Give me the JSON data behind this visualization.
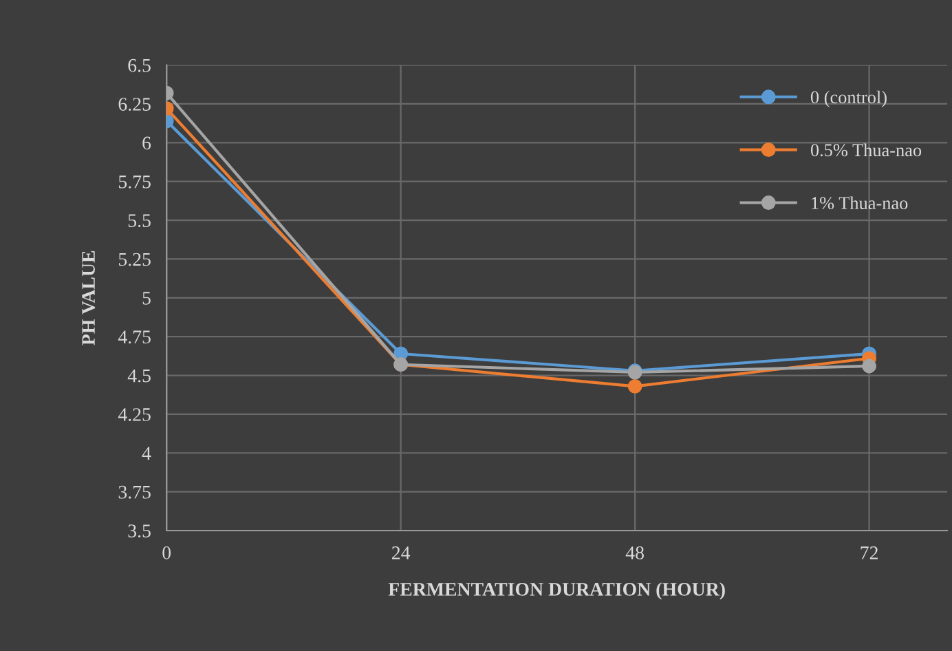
{
  "chart_data": {
    "type": "line",
    "xlabel": "FERMENTATION DURATION (HOUR)",
    "ylabel": "PH VALUE",
    "x": [
      0,
      24,
      48,
      72
    ],
    "series": [
      {
        "name": "0 (control)",
        "color": "#5b9bd5",
        "values": [
          6.14,
          4.64,
          4.53,
          4.64
        ]
      },
      {
        "name": "0.5% Thua-nao",
        "color": "#ed7d31",
        "values": [
          6.22,
          4.57,
          4.43,
          4.61
        ]
      },
      {
        "name": "1% Thua-nao",
        "color": "#a5a5a5",
        "values": [
          6.32,
          4.57,
          4.52,
          4.56
        ]
      }
    ],
    "xlim": [
      0,
      80
    ],
    "xticks": [
      0,
      24,
      48,
      72
    ],
    "ylim": [
      3.5,
      6.5
    ],
    "yticks": [
      3.5,
      3.75,
      4,
      4.25,
      4.5,
      4.75,
      5,
      5.25,
      5.5,
      5.75,
      6,
      6.25,
      6.5
    ],
    "grid": true,
    "legend": "top right",
    "marker": "circle",
    "line_style": "solid"
  }
}
